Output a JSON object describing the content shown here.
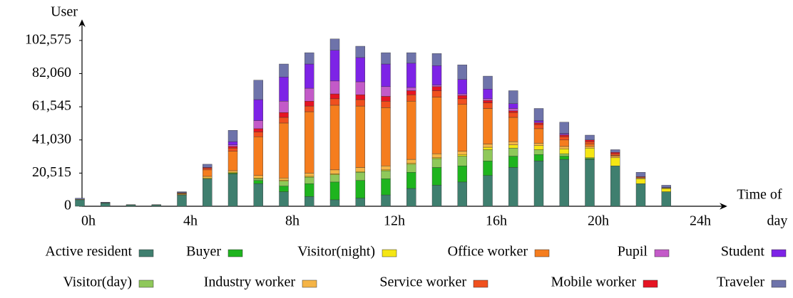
{
  "chart_data": {
    "type": "stacked_bar",
    "y_label": "User",
    "x_label": [
      "Time of",
      "day"
    ],
    "x": [
      0,
      1,
      2,
      3,
      4,
      5,
      6,
      7,
      8,
      9,
      10,
      11,
      12,
      13,
      14,
      15,
      16,
      17,
      18,
      19,
      20,
      21,
      22,
      23
    ],
    "xlim": [
      0,
      24
    ],
    "xticks": [
      {
        "value": 0,
        "label": "0h"
      },
      {
        "value": 4,
        "label": "4h"
      },
      {
        "value": 8,
        "label": "8h"
      },
      {
        "value": 12,
        "label": "12h"
      },
      {
        "value": 16,
        "label": "16h"
      },
      {
        "value": 20,
        "label": "20h"
      },
      {
        "value": 24,
        "label": "24h"
      }
    ],
    "ylim": [
      0,
      110000
    ],
    "yticks": [
      0,
      {
        "value": 20515,
        "label": "20,515"
      },
      {
        "value": 41030,
        "label": "41,030"
      },
      {
        "value": 61545,
        "label": "61,545"
      },
      {
        "value": 82060,
        "label": "82,060"
      },
      {
        "value": 102575,
        "label": "102,575"
      }
    ],
    "series": [
      {
        "name": "Active resident",
        "color": "#3f7f6f",
        "values": [
          4000,
          2000,
          800,
          800,
          7000,
          17000,
          20000,
          14000,
          9000,
          6000,
          4000,
          5000,
          7000,
          11000,
          13000,
          15000,
          19000,
          24000,
          28000,
          29000,
          29000,
          25000,
          14000,
          9000
        ]
      },
      {
        "name": "Buyer",
        "color": "#1eb41e",
        "values": [
          0,
          0,
          0,
          0,
          0,
          0,
          500,
          2000,
          3500,
          8000,
          11000,
          11000,
          10000,
          10000,
          11000,
          10000,
          9000,
          7000,
          4000,
          2000,
          500,
          0,
          0,
          0
        ]
      },
      {
        "name": "Visitor(day)",
        "color": "#8fc85a",
        "values": [
          0,
          0,
          0,
          0,
          0,
          0,
          0,
          1000,
          3000,
          4000,
          4500,
          5000,
          5000,
          5000,
          5500,
          6000,
          7000,
          5000,
          3000,
          1500,
          500,
          0,
          0,
          0
        ]
      },
      {
        "name": "Visitor(night)",
        "color": "#f5e614",
        "values": [
          300,
          200,
          100,
          100,
          300,
          500,
          500,
          500,
          500,
          500,
          500,
          500,
          500,
          500,
          500,
          1000,
          1500,
          2000,
          2500,
          3000,
          6000,
          5000,
          3000,
          2000
        ]
      },
      {
        "name": "Industry worker",
        "color": "#f5b446",
        "values": [
          0,
          0,
          0,
          0,
          300,
          1000,
          1000,
          1500,
          1500,
          2000,
          2500,
          2500,
          2500,
          2500,
          2500,
          2000,
          2000,
          2000,
          1500,
          1500,
          1000,
          1000,
          500,
          300
        ]
      },
      {
        "name": "Office worker",
        "color": "#f57d1e",
        "values": [
          0,
          0,
          0,
          0,
          500,
          4000,
          12000,
          24000,
          34000,
          38000,
          40000,
          38000,
          36000,
          36000,
          35000,
          29000,
          22000,
          15000,
          9000,
          4000,
          1500,
          500,
          0,
          0
        ]
      },
      {
        "name": "Service worker",
        "color": "#f0501e",
        "values": [
          0,
          0,
          0,
          0,
          200,
          1000,
          2000,
          3000,
          3500,
          3500,
          4000,
          4000,
          4000,
          4000,
          4000,
          3500,
          3500,
          3000,
          2500,
          2000,
          1500,
          1000,
          500,
          200
        ]
      },
      {
        "name": "Mobile worker",
        "color": "#e61423",
        "values": [
          0,
          0,
          0,
          0,
          100,
          500,
          1000,
          2000,
          3000,
          3000,
          3000,
          3000,
          3000,
          2500,
          2500,
          2000,
          1500,
          1000,
          1000,
          1000,
          1000,
          800,
          300,
          100
        ]
      },
      {
        "name": "Pupil",
        "color": "#c35ac8",
        "values": [
          0,
          0,
          0,
          0,
          0,
          0,
          1000,
          5000,
          7000,
          8000,
          8000,
          8000,
          6000,
          2000,
          1000,
          1000,
          1000,
          1500,
          500,
          500,
          0,
          0,
          0,
          0
        ]
      },
      {
        "name": "Student",
        "color": "#7d23e6",
        "values": [
          0,
          0,
          0,
          0,
          0,
          0,
          2000,
          13000,
          15000,
          15000,
          19000,
          15000,
          14000,
          15000,
          12000,
          9000,
          6000,
          3000,
          1000,
          500,
          0,
          0,
          0,
          0
        ]
      },
      {
        "name": "Traveler",
        "color": "#6e73aa",
        "values": [
          700,
          300,
          100,
          100,
          600,
          2000,
          7000,
          12000,
          8000,
          7000,
          7000,
          7000,
          7000,
          6500,
          7500,
          9000,
          8000,
          8000,
          7500,
          7000,
          3000,
          1700,
          2700,
          1400
        ]
      }
    ]
  }
}
